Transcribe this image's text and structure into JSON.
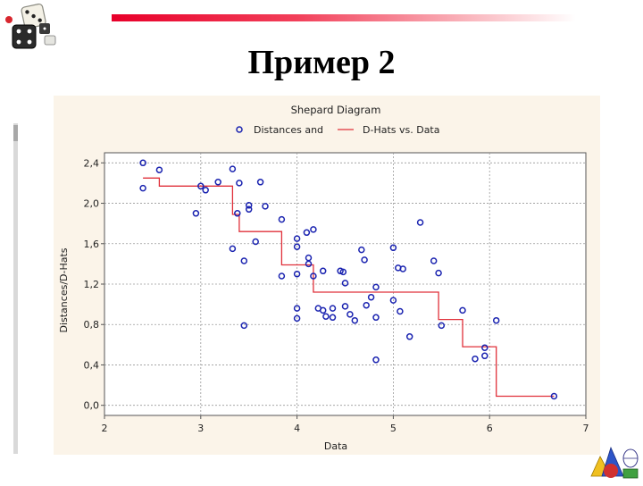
{
  "slide": {
    "title": "Пример 2"
  },
  "chart_data": {
    "type": "scatter",
    "title": "Shepard Diagram",
    "xlabel": "Data",
    "ylabel": "Distances/D-Hats",
    "xlim": [
      2,
      7
    ],
    "ylim": [
      -0.1,
      2.5
    ],
    "x_ticks": [
      "2",
      "3",
      "4",
      "5",
      "6",
      "7"
    ],
    "y_ticks": [
      "0,0",
      "0,4",
      "0,8",
      "1,2",
      "1,6",
      "2,0",
      "2,4"
    ],
    "grid": true,
    "legend_position": "top",
    "series": [
      {
        "name": "Distances and",
        "kind": "scatter",
        "color": "#1a23b0",
        "points": [
          [
            2.4,
            2.4
          ],
          [
            2.4,
            2.15
          ],
          [
            2.57,
            2.33
          ],
          [
            2.95,
            1.9
          ],
          [
            3.0,
            2.17
          ],
          [
            3.05,
            2.13
          ],
          [
            3.18,
            2.21
          ],
          [
            3.33,
            2.34
          ],
          [
            3.33,
            1.55
          ],
          [
            3.38,
            1.9
          ],
          [
            3.4,
            2.2
          ],
          [
            3.45,
            0.79
          ],
          [
            3.45,
            1.43
          ],
          [
            3.5,
            1.98
          ],
          [
            3.5,
            1.94
          ],
          [
            3.57,
            1.62
          ],
          [
            3.62,
            2.21
          ],
          [
            3.67,
            1.97
          ],
          [
            3.84,
            1.84
          ],
          [
            3.84,
            1.28
          ],
          [
            4.0,
            1.65
          ],
          [
            4.0,
            1.57
          ],
          [
            4.0,
            1.3
          ],
          [
            4.0,
            0.96
          ],
          [
            4.0,
            0.86
          ],
          [
            4.1,
            1.71
          ],
          [
            4.12,
            1.46
          ],
          [
            4.12,
            1.4
          ],
          [
            4.17,
            1.74
          ],
          [
            4.17,
            1.28
          ],
          [
            4.22,
            0.96
          ],
          [
            4.27,
            1.33
          ],
          [
            4.27,
            0.94
          ],
          [
            4.3,
            0.88
          ],
          [
            4.37,
            0.96
          ],
          [
            4.37,
            0.87
          ],
          [
            4.45,
            1.33
          ],
          [
            4.48,
            1.32
          ],
          [
            4.5,
            1.21
          ],
          [
            4.5,
            0.98
          ],
          [
            4.55,
            0.9
          ],
          [
            4.6,
            0.84
          ],
          [
            4.67,
            1.54
          ],
          [
            4.7,
            1.44
          ],
          [
            4.72,
            0.99
          ],
          [
            4.77,
            1.07
          ],
          [
            4.82,
            1.17
          ],
          [
            4.82,
            0.87
          ],
          [
            4.82,
            0.45
          ],
          [
            5.0,
            1.56
          ],
          [
            5.0,
            1.04
          ],
          [
            5.05,
            1.36
          ],
          [
            5.07,
            0.93
          ],
          [
            5.1,
            1.35
          ],
          [
            5.17,
            0.68
          ],
          [
            5.28,
            1.81
          ],
          [
            5.42,
            1.43
          ],
          [
            5.47,
            1.31
          ],
          [
            5.5,
            0.79
          ],
          [
            5.72,
            0.94
          ],
          [
            5.85,
            0.46
          ],
          [
            5.95,
            0.57
          ],
          [
            5.95,
            0.49
          ],
          [
            6.07,
            0.84
          ],
          [
            6.67,
            0.09
          ]
        ]
      },
      {
        "name": "D-Hats vs. Data",
        "kind": "step",
        "color": "#e0303a",
        "points": [
          [
            2.4,
            2.25
          ],
          [
            2.57,
            2.25
          ],
          [
            2.57,
            2.17
          ],
          [
            3.33,
            2.17
          ],
          [
            3.33,
            1.89
          ],
          [
            3.4,
            1.89
          ],
          [
            3.4,
            1.72
          ],
          [
            3.84,
            1.72
          ],
          [
            3.84,
            1.39
          ],
          [
            4.17,
            1.39
          ],
          [
            4.17,
            1.12
          ],
          [
            5.47,
            1.12
          ],
          [
            5.47,
            0.85
          ],
          [
            5.72,
            0.85
          ],
          [
            5.72,
            0.58
          ],
          [
            6.07,
            0.58
          ],
          [
            6.07,
            0.09
          ],
          [
            6.67,
            0.09
          ]
        ]
      }
    ]
  }
}
